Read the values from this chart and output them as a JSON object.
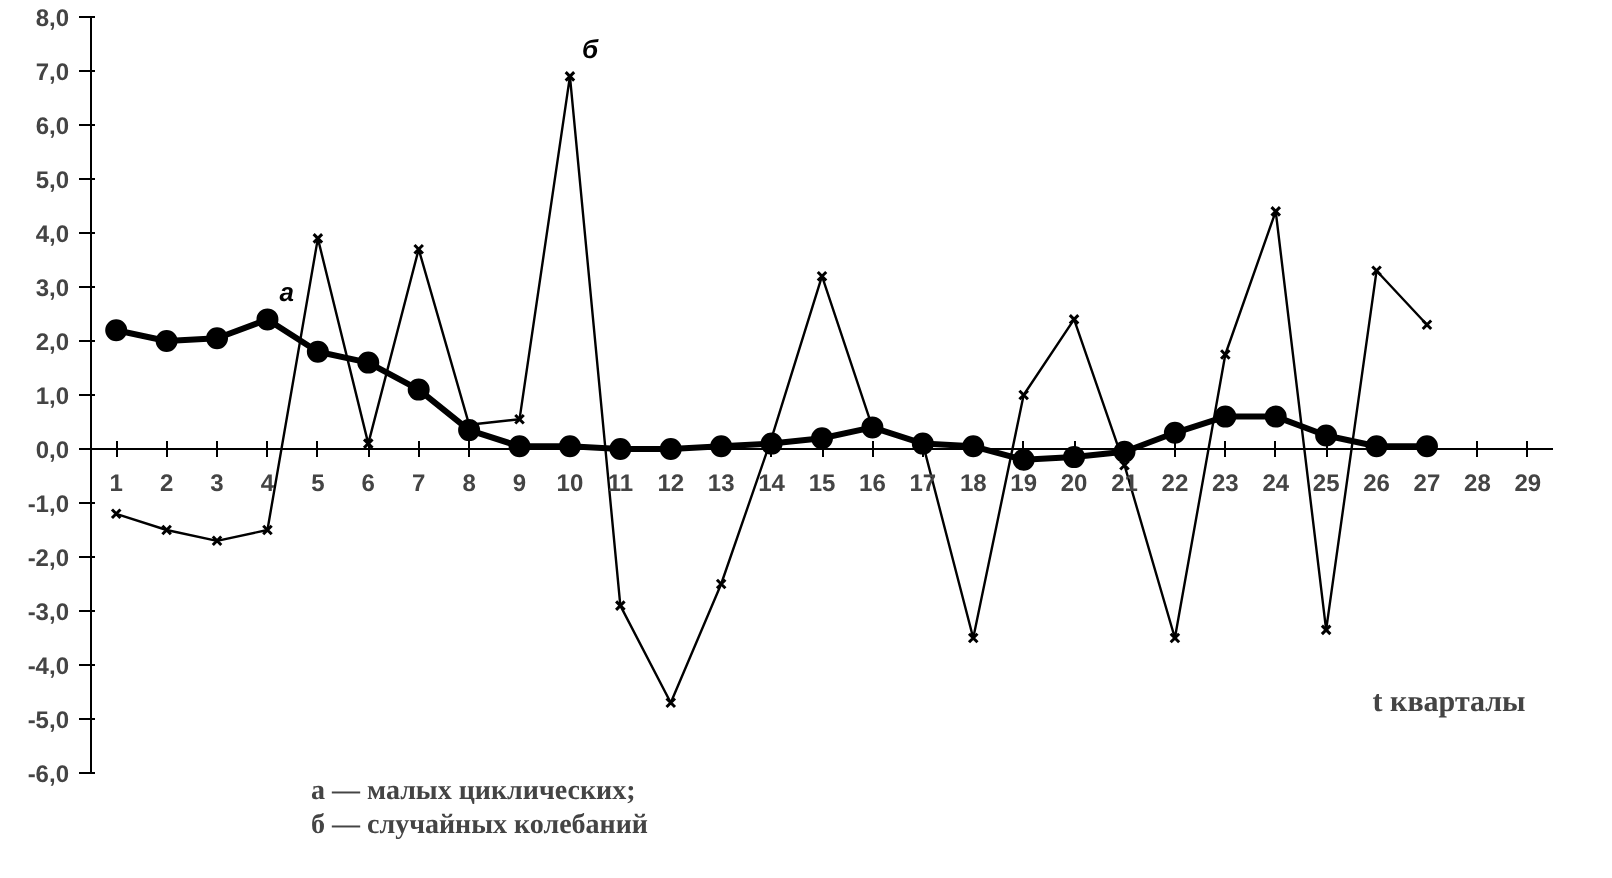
{
  "chart_data": {
    "type": "line",
    "xlabel": "t  кварталы",
    "x": [
      1,
      2,
      3,
      4,
      5,
      6,
      7,
      8,
      9,
      10,
      11,
      12,
      13,
      14,
      15,
      16,
      17,
      18,
      19,
      20,
      21,
      22,
      23,
      24,
      25,
      26,
      27
    ],
    "series": [
      {
        "name": "а",
        "color": "#000000",
        "marker": "circle",
        "values": [
          2.2,
          2.0,
          2.05,
          2.4,
          1.8,
          1.6,
          1.1,
          0.35,
          0.05,
          0.05,
          0.0,
          0.0,
          0.05,
          0.1,
          0.2,
          0.4,
          0.1,
          0.05,
          -0.2,
          -0.15,
          -0.05,
          0.3,
          0.6,
          0.6,
          0.25,
          0.05,
          0.05
        ]
      },
      {
        "name": "б",
        "color": "#000000",
        "marker": "cross",
        "values": [
          -1.2,
          -1.5,
          -1.7,
          -1.5,
          3.9,
          0.1,
          3.7,
          0.45,
          0.55,
          6.9,
          -2.9,
          -4.7,
          -2.5,
          0.2,
          3.2,
          0.4,
          0.1,
          -3.5,
          1.0,
          2.4,
          -0.3,
          -3.5,
          1.75,
          4.4,
          -3.35,
          3.3,
          2.3
        ]
      }
    ],
    "xlim": [
      0.5,
      29.5
    ],
    "xticks": [
      1,
      2,
      3,
      4,
      5,
      6,
      7,
      8,
      9,
      10,
      11,
      12,
      13,
      14,
      15,
      16,
      17,
      18,
      19,
      20,
      21,
      22,
      23,
      24,
      25,
      26,
      27,
      28,
      29
    ],
    "ylim": [
      -6,
      8
    ],
    "yticks": [
      {
        "value": -6,
        "label": "-6,0"
      },
      {
        "value": -5,
        "label": "-5,0"
      },
      {
        "value": -4,
        "label": "-4,0"
      },
      {
        "value": -3,
        "label": "-3,0"
      },
      {
        "value": -2,
        "label": "-2,0"
      },
      {
        "value": -1,
        "label": "-1,0"
      },
      {
        "value": 0,
        "label": "0,0"
      },
      {
        "value": 1,
        "label": "1,0"
      },
      {
        "value": 2,
        "label": "2,0"
      },
      {
        "value": 3,
        "label": "3,0"
      },
      {
        "value": 4,
        "label": "4,0"
      },
      {
        "value": 5,
        "label": "5,0"
      },
      {
        "value": 6,
        "label": "6,0"
      },
      {
        "value": 7,
        "label": "7,0"
      },
      {
        "value": 8,
        "label": "8,0"
      }
    ],
    "grid": false,
    "annotations": [
      "а — малых циклических;",
      "б — случайных колебаний"
    ]
  }
}
